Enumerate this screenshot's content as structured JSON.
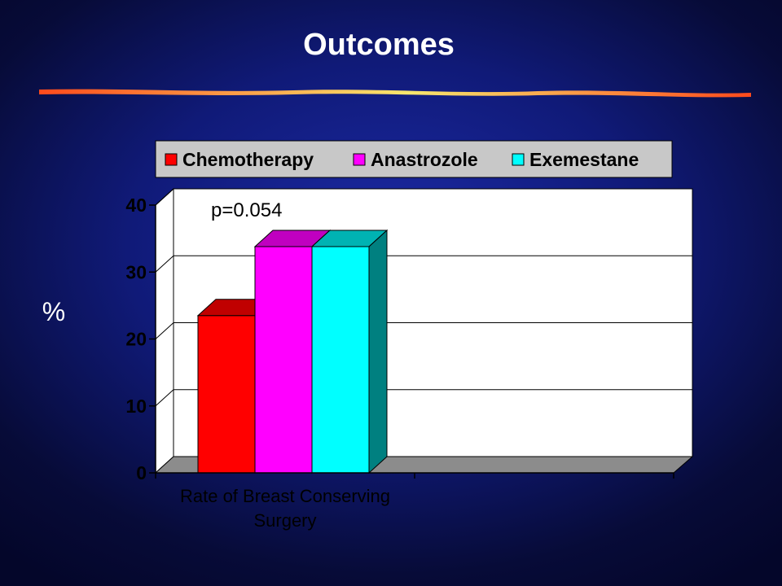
{
  "slide": {
    "title": "Outcomes",
    "background_color": "#101a78",
    "rule_colors": [
      "#ff4a1c",
      "#f7e76e",
      "#ff4a1c"
    ]
  },
  "chart_data": {
    "type": "bar",
    "title": "",
    "categories": [
      "Rate of Breast Conserving Surgery"
    ],
    "category_lines": [
      [
        "Rate of Breast Conserving",
        "Surgery"
      ]
    ],
    "series": [
      {
        "name": "Chemotherapy",
        "values": [
          23.5
        ],
        "color": "#ff0000",
        "side_color": "#8f0000",
        "top_color": "#c00000"
      },
      {
        "name": "Anastrozole",
        "values": [
          33.8
        ],
        "color": "#ff00ff",
        "side_color": "#8f008f",
        "top_color": "#c000c0"
      },
      {
        "name": "Exemestane",
        "values": [
          33.8
        ],
        "color": "#00ffff",
        "side_color": "#008080",
        "top_color": "#00b3b3"
      }
    ],
    "ylabel": "%",
    "ylim": [
      0,
      40
    ],
    "yticks": [
      0,
      10,
      20,
      30,
      40
    ],
    "grid": true,
    "legend": "top",
    "annotation": "p=0.054"
  }
}
